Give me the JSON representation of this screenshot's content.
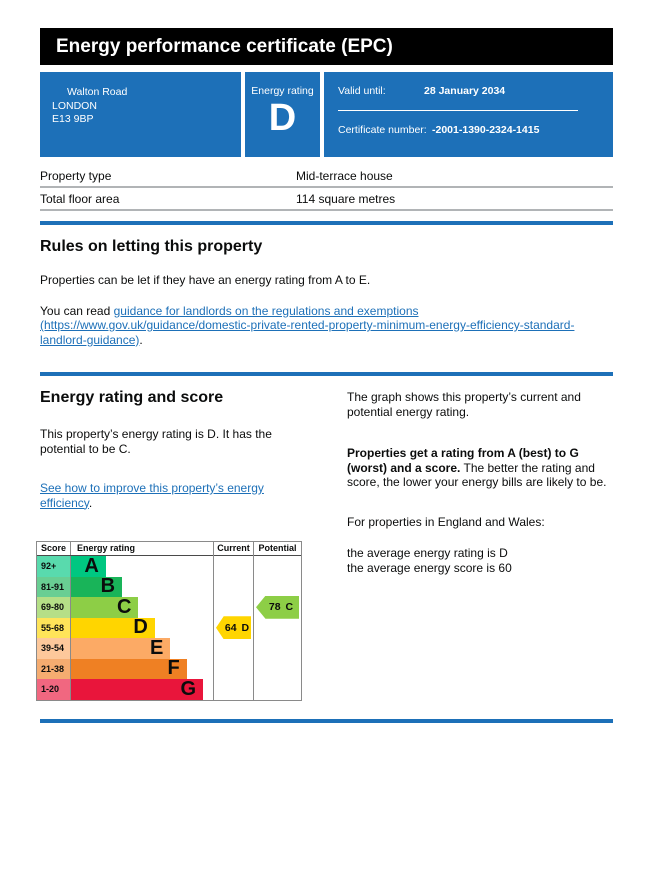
{
  "colors": {
    "brand_blue": "#1d70b8",
    "link_blue": "#1d70b8",
    "header_bg": "#000000",
    "table_border": "#b1b4b6",
    "chart_border": "#8a8a8a",
    "text": "#0b0c0c"
  },
  "header": {
    "title": "Energy performance certificate (EPC)"
  },
  "summary": {
    "address_lines": [
      "Walton Road",
      "LONDON",
      "E13 9BP"
    ],
    "rating_label": "Energy rating",
    "rating_value": "D",
    "valid_until_label": "Valid until:",
    "valid_until_value": "28 January 2034",
    "certificate_label": "Certificate number:",
    "certificate_value": "-2001-1390-2324-1415"
  },
  "property": {
    "rows": [
      {
        "label": "Property type",
        "value": "Mid-terrace house"
      },
      {
        "label": "Total floor area",
        "value": "114 square metres"
      }
    ]
  },
  "rules": {
    "heading": "Rules on letting this property",
    "para1": "Properties can be let if they have an energy rating from A to E.",
    "para2_prefix": "You can read ",
    "para2_link": "guidance for landlords on the regulations and exemptions (https://www.gov.uk/guidance/domestic-private-rented-property-minimum-energy-efficiency-standard-landlord-guidance)",
    "para2_suffix": "."
  },
  "rating_section": {
    "heading": "Energy rating and score",
    "para1": "This property’s energy rating is D. It has the potential to be C.",
    "improve_link": "See how to improve this property’s energy efficiency",
    "improve_suffix": ".",
    "right_para1": "The graph shows this property’s current and potential energy rating.",
    "right_para2_bold": "Properties get a rating from A (best) to G (worst) and a score.",
    "right_para2_rest": " The better the rating and score, the lower your energy bills are likely to be.",
    "right_para3": "For properties in England and Wales:",
    "right_para4_line1": "the average energy rating is D",
    "right_para4_line2": "the average energy score is 60"
  },
  "chart_data": {
    "type": "bar",
    "title": "Energy rating and score graph",
    "headers": {
      "score": "Score",
      "rating": "Energy rating",
      "current": "Current",
      "potential": "Potential"
    },
    "bands": [
      {
        "letter": "A",
        "score_range": "92+",
        "color": "#00c781",
        "tint": "#59daad",
        "width_pct": 24.5
      },
      {
        "letter": "B",
        "score_range": "81-91",
        "color": "#19b459",
        "tint": "#69ce93",
        "width_pct": 36
      },
      {
        "letter": "C",
        "score_range": "69-80",
        "color": "#8dce46",
        "tint": "#b5df87",
        "width_pct": 47.5
      },
      {
        "letter": "D",
        "score_range": "55-68",
        "color": "#ffd500",
        "tint": "#ffe459",
        "width_pct": 59
      },
      {
        "letter": "E",
        "score_range": "39-54",
        "color": "#fcaa65",
        "tint": "#fdc89b",
        "width_pct": 70
      },
      {
        "letter": "F",
        "score_range": "21-38",
        "color": "#ef8023",
        "tint": "#f5ac70",
        "width_pct": 81.5
      },
      {
        "letter": "G",
        "score_range": "1-20",
        "color": "#e9153b",
        "tint": "#f16780",
        "width_pct": 93
      }
    ],
    "current": {
      "score": "64",
      "letter": "D",
      "band_index": 3,
      "color": "#ffd500"
    },
    "potential": {
      "score": "78",
      "letter": "C",
      "band_index": 2,
      "color": "#8dce46"
    }
  }
}
